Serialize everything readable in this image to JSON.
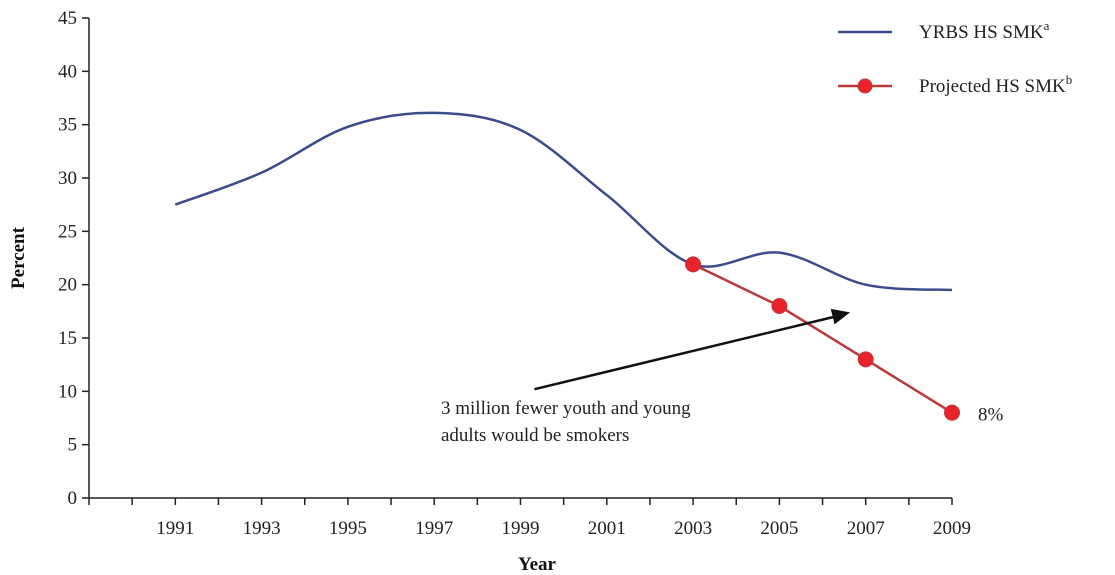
{
  "chart_data": {
    "type": "line",
    "xlabel": "Year",
    "ylabel": "Percent",
    "ylim": [
      0,
      45
    ],
    "y_ticks": [
      0,
      5,
      10,
      15,
      20,
      25,
      30,
      35,
      40,
      45
    ],
    "x_ticks": [
      "1991",
      "1993",
      "1995",
      "1997",
      "1999",
      "2001",
      "2003",
      "2005",
      "2007",
      "2009"
    ],
    "xlim": [
      1989,
      2009
    ],
    "grid": false,
    "legend_position": "top-right",
    "series": [
      {
        "name": "YRBS HS SMK",
        "name_superscript": "a",
        "color": "#3d4a8c",
        "marker": "none",
        "x": [
          1991,
          1993,
          1995,
          1997,
          1999,
          2001,
          2003,
          2005,
          2007,
          2009
        ],
        "y": [
          27.5,
          30.5,
          34.8,
          36.1,
          34.5,
          28.4,
          21.9,
          23.0,
          20.0,
          19.5
        ]
      },
      {
        "name": "Projected HS SMK",
        "name_superscript": "b",
        "color": "#b83a3a",
        "marker_color": "#e8232a",
        "marker": "circle",
        "x": [
          2003,
          2005,
          2007,
          2009
        ],
        "y": [
          21.9,
          18.0,
          13.0,
          8.0
        ]
      }
    ],
    "annotations": {
      "end_label": "8%",
      "note_line1": "3 million fewer youth and young",
      "note_line2": "adults would be smokers",
      "arrow_from": [
        1999.0,
        10.2
      ],
      "arrow_to": [
        2006.5,
        17.4
      ]
    }
  }
}
